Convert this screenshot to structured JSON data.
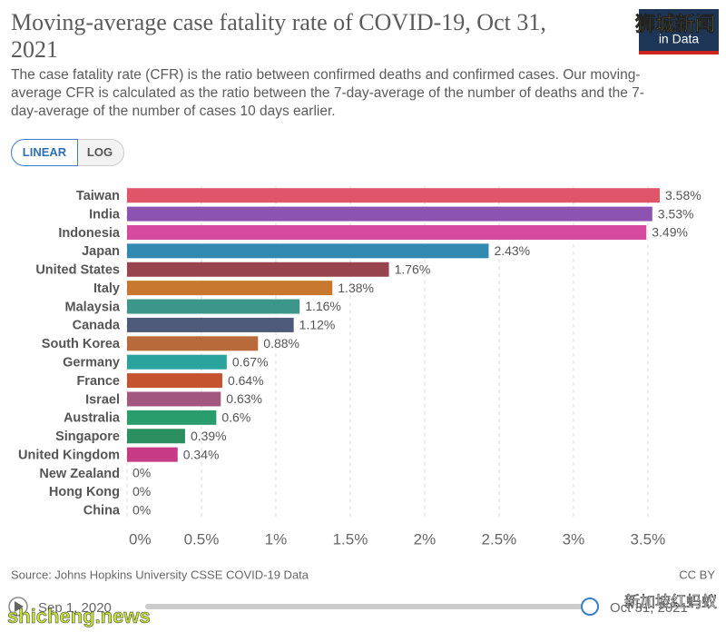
{
  "chart_data": {
    "type": "bar",
    "orientation": "horizontal",
    "title": "Moving-average case fatality rate of COVID-19, Oct 31, 2021",
    "subtitle": "The case fatality rate (CFR) is the ratio between confirmed deaths and confirmed cases. Our moving-average CFR is calculated as the ratio between the 7-day-average of the number of deaths and the 7-day-average of the number of cases 10 days earlier.",
    "buttons": [
      "LINEAR",
      "LOG"
    ],
    "categories": [
      "Taiwan",
      "India",
      "Indonesia",
      "Japan",
      "United States",
      "Italy",
      "Malaysia",
      "Canada",
      "South Korea",
      "Germany",
      "France",
      "Israel",
      "Australia",
      "Singapore",
      "United Kingdom",
      "New Zealand",
      "Hong Kong",
      "China"
    ],
    "values": [
      3.58,
      3.53,
      3.49,
      2.43,
      1.76,
      1.38,
      1.16,
      1.12,
      0.88,
      0.67,
      0.64,
      0.63,
      0.6,
      0.39,
      0.34,
      0,
      0,
      0
    ],
    "value_labels": [
      "3.58%",
      "3.53%",
      "3.49%",
      "2.43%",
      "1.76%",
      "1.38%",
      "1.16%",
      "1.12%",
      "0.88%",
      "0.67%",
      "0.64%",
      "0.63%",
      "0.6%",
      "0.39%",
      "0.34%",
      "0%",
      "0%",
      "0%"
    ],
    "colors": [
      "#e0556a",
      "#8c54b0",
      "#d54a9e",
      "#2f89b0",
      "#98444f",
      "#c8772f",
      "#3c978a",
      "#4e5b78",
      "#b96a3b",
      "#2aa39d",
      "#c6532f",
      "#a2577f",
      "#2a9d6d",
      "#2b8f5f",
      "#c63a86",
      null,
      null,
      null
    ],
    "xlim": [
      0,
      3.58
    ],
    "xticks": [
      {
        "value": 0,
        "label": "0%"
      },
      {
        "value": 0.5,
        "label": "0.5%"
      },
      {
        "value": 1,
        "label": "1%"
      },
      {
        "value": 1.5,
        "label": "1.5%"
      },
      {
        "value": 2,
        "label": "2%"
      },
      {
        "value": 2.5,
        "label": "2.5%"
      },
      {
        "value": 3,
        "label": "3%"
      },
      {
        "value": 3.5,
        "label": "3.5%"
      }
    ],
    "grid": true,
    "source": "Source: Johns Hopkins University CSSE COVID-19 Data",
    "license": "CC BY",
    "timeline": [
      "Sep 1, 2020",
      "Oct 31, 2021"
    ],
    "logo": "in Data",
    "watermarks": [
      "狮城新闻",
      "shicheng.news",
      "新加坡红蚂蚁"
    ]
  }
}
